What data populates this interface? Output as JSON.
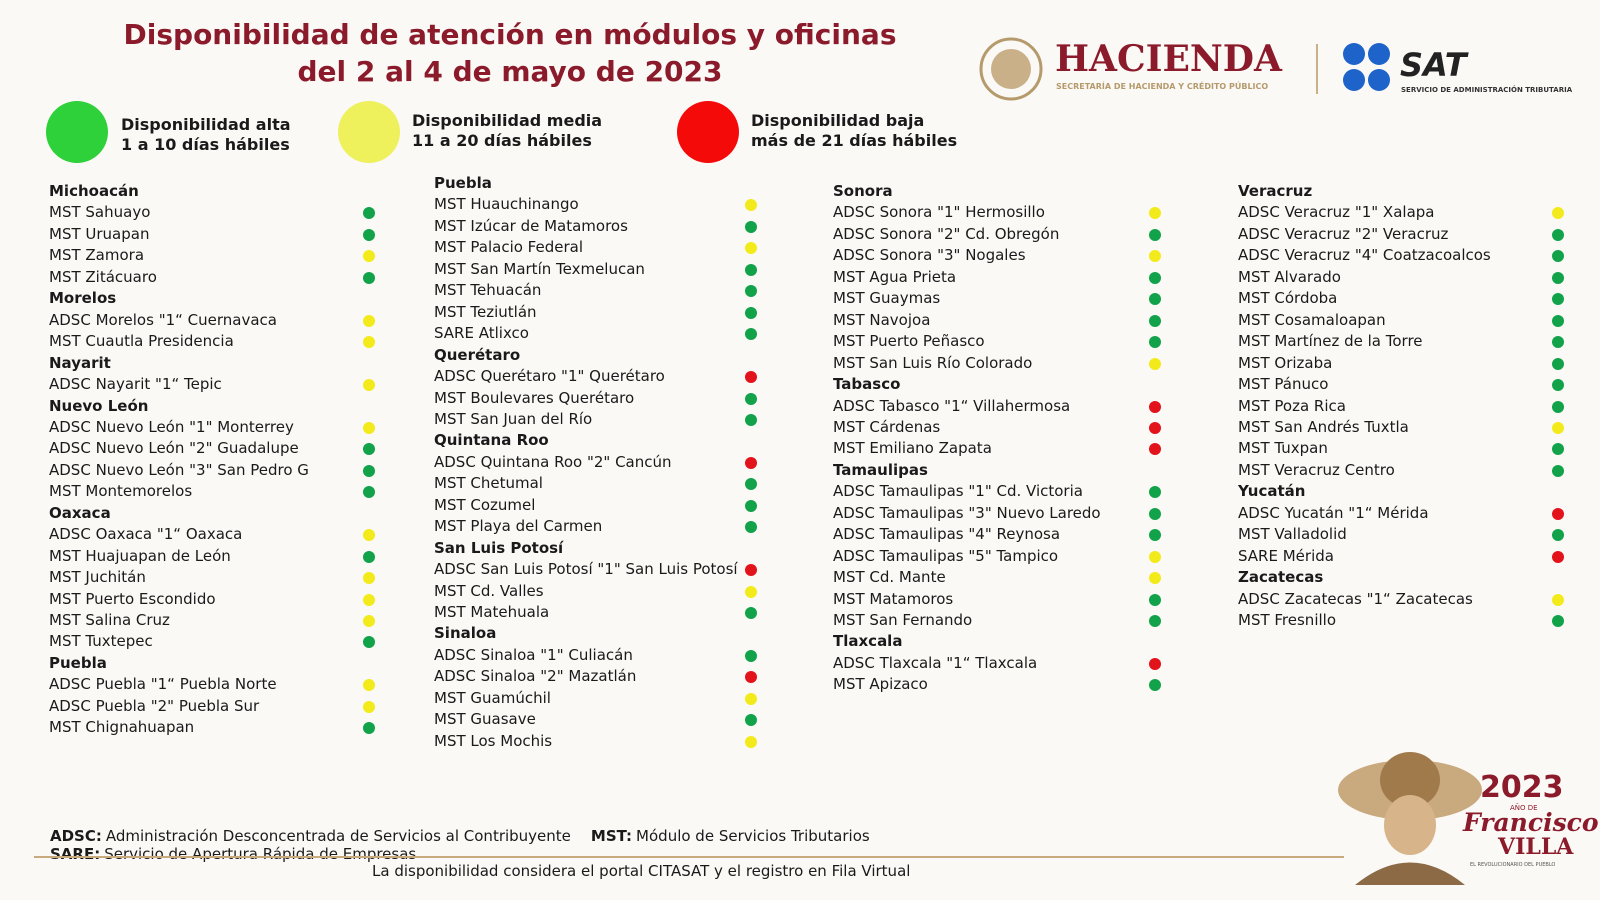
{
  "header": {
    "title": [
      "Disponibilidad de atención en módulos y oficinas",
      "del 2 al 4 de mayo de 2023"
    ],
    "hacienda": "HACIENDA",
    "hacienda_sub": "SECRETARÍA DE HACIENDA Y CRÉDITO PÚBLICO",
    "sat": "SAT",
    "sat_sub": "SERVICIO DE ADMINISTRACIÓN TRIBUTARIA"
  },
  "legend": [
    {
      "key": "alta",
      "color": "#2ed13a",
      "dot_color": "#12a34a",
      "lines": [
        "Disponibilidad alta",
        "1 a 10 días hábiles"
      ]
    },
    {
      "key": "media",
      "color": "#eef05c",
      "dot_color": "#f3ea1c",
      "lines": [
        "Disponibilidad media",
        "11 a 20 días hábiles"
      ]
    },
    {
      "key": "baja",
      "color": "#f50a0a",
      "dot_color": "#e3131b",
      "lines": [
        "Disponibilidad baja",
        "más de 21 días hábiles"
      ]
    }
  ],
  "columns": [
    [
      {
        "state": "Michoacán",
        "offices": [
          {
            "name": "MST Sahuayo",
            "status": "alta"
          },
          {
            "name": "MST Uruapan",
            "status": "alta"
          },
          {
            "name": "MST Zamora",
            "status": "media"
          },
          {
            "name": "MST Zitácuaro",
            "status": "alta"
          }
        ]
      },
      {
        "state": "Morelos",
        "offices": [
          {
            "name": "ADSC Morelos \"1“ Cuernavaca",
            "status": "media"
          },
          {
            "name": "MST Cuautla Presidencia",
            "status": "media"
          }
        ]
      },
      {
        "state": "Nayarit",
        "offices": [
          {
            "name": "ADSC Nayarit \"1“ Tepic",
            "status": "media"
          }
        ]
      },
      {
        "state": "Nuevo León",
        "offices": [
          {
            "name": "ADSC Nuevo León \"1\" Monterrey",
            "status": "media"
          },
          {
            "name": "ADSC Nuevo León \"2\" Guadalupe",
            "status": "alta"
          },
          {
            "name": "ADSC Nuevo León \"3\" San Pedro G",
            "status": "alta"
          },
          {
            "name": "MST Montemorelos",
            "status": "alta"
          }
        ]
      },
      {
        "state": "Oaxaca",
        "offices": [
          {
            "name": "ADSC Oaxaca \"1“ Oaxaca",
            "status": "media"
          },
          {
            "name": "MST Huajuapan de León",
            "status": "alta"
          },
          {
            "name": "MST Juchitán",
            "status": "media"
          },
          {
            "name": "MST Puerto Escondido",
            "status": "media"
          },
          {
            "name": "MST Salina Cruz",
            "status": "media"
          },
          {
            "name": "MST Tuxtepec",
            "status": "alta"
          }
        ]
      },
      {
        "state": "Puebla",
        "offices": [
          {
            "name": "ADSC Puebla \"1“ Puebla Norte",
            "status": "media"
          },
          {
            "name": "ADSC Puebla \"2\" Puebla Sur",
            "status": "media"
          },
          {
            "name": "MST Chignahuapan",
            "status": "alta"
          }
        ]
      }
    ],
    [
      {
        "state": "Puebla",
        "offices": [
          {
            "name": "MST Huauchinango",
            "status": "media"
          },
          {
            "name": "MST Izúcar de Matamoros",
            "status": "alta"
          },
          {
            "name": "MST Palacio Federal",
            "status": "media"
          },
          {
            "name": "MST San Martín Texmelucan",
            "status": "alta"
          },
          {
            "name": "MST Tehuacán",
            "status": "alta"
          },
          {
            "name": "MST Teziutlán",
            "status": "alta"
          },
          {
            "name": "SARE Atlixco",
            "status": "alta"
          }
        ]
      },
      {
        "state": "Querétaro",
        "offices": [
          {
            "name": "ADSC Querétaro \"1\" Querétaro",
            "status": "baja"
          },
          {
            "name": "MST Boulevares Querétaro",
            "status": "alta"
          },
          {
            "name": "MST San Juan del Río",
            "status": "alta"
          }
        ]
      },
      {
        "state": "Quintana Roo",
        "offices": [
          {
            "name": "ADSC Quintana Roo \"2\" Cancún",
            "status": "baja"
          },
          {
            "name": "MST Chetumal",
            "status": "alta"
          },
          {
            "name": "MST Cozumel",
            "status": "alta"
          },
          {
            "name": "MST Playa del Carmen",
            "status": "alta"
          }
        ]
      },
      {
        "state": "San Luis Potosí",
        "offices": [
          {
            "name": "ADSC San Luis Potosí \"1\" San Luis Potosí",
            "status": "baja"
          },
          {
            "name": "MST Cd. Valles",
            "status": "media"
          },
          {
            "name": "MST Matehuala",
            "status": "alta"
          }
        ]
      },
      {
        "state": "Sinaloa",
        "offices": [
          {
            "name": "ADSC Sinaloa \"1\" Culiacán",
            "status": "alta"
          },
          {
            "name": "ADSC Sinaloa \"2\" Mazatlán",
            "status": "baja"
          },
          {
            "name": "MST Guamúchil",
            "status": "media"
          },
          {
            "name": "MST Guasave",
            "status": "alta"
          },
          {
            "name": "MST Los Mochis",
            "status": "media"
          }
        ]
      }
    ],
    [
      {
        "state": "Sonora",
        "offices": [
          {
            "name": "ADSC Sonora \"1\" Hermosillo",
            "status": "media"
          },
          {
            "name": "ADSC Sonora \"2\" Cd. Obregón",
            "status": "alta"
          },
          {
            "name": "ADSC Sonora \"3\" Nogales",
            "status": "media"
          },
          {
            "name": "MST Agua Prieta",
            "status": "alta"
          },
          {
            "name": "MST Guaymas",
            "status": "alta"
          },
          {
            "name": "MST Navojoa",
            "status": "alta"
          },
          {
            "name": "MST Puerto Peñasco",
            "status": "alta"
          },
          {
            "name": "MST San Luis Río Colorado",
            "status": "media"
          }
        ]
      },
      {
        "state": "Tabasco",
        "offices": [
          {
            "name": "ADSC Tabasco \"1“ Villahermosa",
            "status": "baja"
          },
          {
            "name": "MST Cárdenas",
            "status": "baja"
          },
          {
            "name": "MST Emiliano Zapata",
            "status": "baja"
          }
        ]
      },
      {
        "state": "Tamaulipas",
        "offices": [
          {
            "name": "ADSC Tamaulipas \"1\" Cd. Victoria",
            "status": "alta"
          },
          {
            "name": "ADSC Tamaulipas \"3\" Nuevo Laredo",
            "status": "alta"
          },
          {
            "name": "ADSC Tamaulipas \"4\" Reynosa",
            "status": "alta"
          },
          {
            "name": "ADSC Tamaulipas \"5\" Tampico",
            "status": "media"
          },
          {
            "name": "MST Cd. Mante",
            "status": "media"
          },
          {
            "name": "MST Matamoros",
            "status": "alta"
          },
          {
            "name": "MST San Fernando",
            "status": "alta"
          }
        ]
      },
      {
        "state": "Tlaxcala",
        "offices": [
          {
            "name": "ADSC Tlaxcala \"1“ Tlaxcala",
            "status": "baja"
          },
          {
            "name": "MST Apizaco",
            "status": "alta"
          }
        ]
      }
    ],
    [
      {
        "state": "Veracruz",
        "offices": [
          {
            "name": "ADSC Veracruz \"1\" Xalapa",
            "status": "media"
          },
          {
            "name": "ADSC Veracruz \"2\" Veracruz",
            "status": "alta"
          },
          {
            "name": "ADSC Veracruz \"4\" Coatzacoalcos",
            "status": "alta"
          },
          {
            "name": "MST Alvarado",
            "status": "alta"
          },
          {
            "name": "MST Córdoba",
            "status": "alta"
          },
          {
            "name": "MST Cosamaloapan",
            "status": "alta"
          },
          {
            "name": "MST Martínez de la Torre",
            "status": "alta"
          },
          {
            "name": "MST Orizaba",
            "status": "alta"
          },
          {
            "name": "MST Pánuco",
            "status": "alta"
          },
          {
            "name": "MST Poza Rica",
            "status": "alta"
          },
          {
            "name": "MST San Andrés Tuxtla",
            "status": "media"
          },
          {
            "name": "MST Tuxpan",
            "status": "alta"
          },
          {
            "name": "MST Veracruz Centro",
            "status": "alta"
          }
        ]
      },
      {
        "state": "Yucatán",
        "offices": [
          {
            "name": "ADSC Yucatán \"1“ Mérida",
            "status": "baja"
          },
          {
            "name": "MST Valladolid",
            "status": "alta"
          },
          {
            "name": "SARE Mérida",
            "status": "baja"
          }
        ]
      },
      {
        "state": "Zacatecas",
        "offices": [
          {
            "name": "ADSC Zacatecas \"1“ Zacatecas",
            "status": "media"
          },
          {
            "name": "MST Fresnillo",
            "status": "alta"
          }
        ]
      }
    ]
  ],
  "footer": {
    "abbreviations": [
      {
        "abbr": "ADSC:",
        "text": "Administración Desconcentrada de Servicios al Contribuyente"
      },
      {
        "abbr": "MST:",
        "text": "Módulo de Servicios Tributarios"
      },
      {
        "abbr": "SARE:",
        "text": "Servicio de Apertura Rápida de Empresas"
      }
    ],
    "note": "La disponibilidad considera el portal CITASAT y el registro en Fila Virtual"
  },
  "badge": {
    "year": "2023",
    "sub": "AÑO DE",
    "name1": "Francisco",
    "name2": "VILLA",
    "motto": "EL REVOLUCIONARIO DEL PUEBLO"
  }
}
